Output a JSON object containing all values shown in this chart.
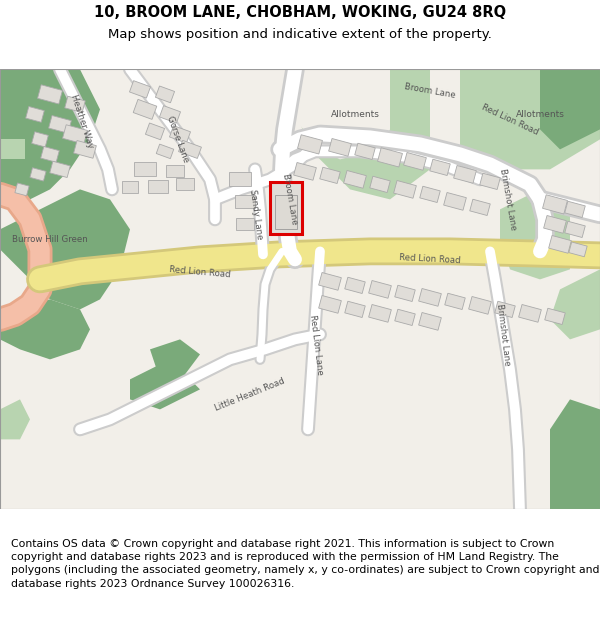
{
  "title_line1": "10, BROOM LANE, CHOBHAM, WOKING, GU24 8RQ",
  "title_line2": "Map shows position and indicative extent of the property.",
  "footer_text": "Contains OS data © Crown copyright and database right 2021. This information is subject to Crown copyright and database rights 2023 and is reproduced with the permission of HM Land Registry. The polygons (including the associated geometry, namely x, y co-ordinates) are subject to Crown copyright and database rights 2023 Ordnance Survey 100026316.",
  "title_fontsize": 10.5,
  "subtitle_fontsize": 9.5,
  "footer_fontsize": 7.8,
  "map_bg": "#f2efe9",
  "green_dark": "#7aaa7a",
  "green_light": "#b8d4b0",
  "road_yellow": "#f0e68c",
  "road_yellow_edge": "#d4c87a",
  "road_white": "#ffffff",
  "road_grey_edge": "#cccccc",
  "building_fill": "#e0ddd8",
  "building_edge": "#aaaaaa",
  "property_edge": "#dd0000",
  "text_color": "#555555"
}
